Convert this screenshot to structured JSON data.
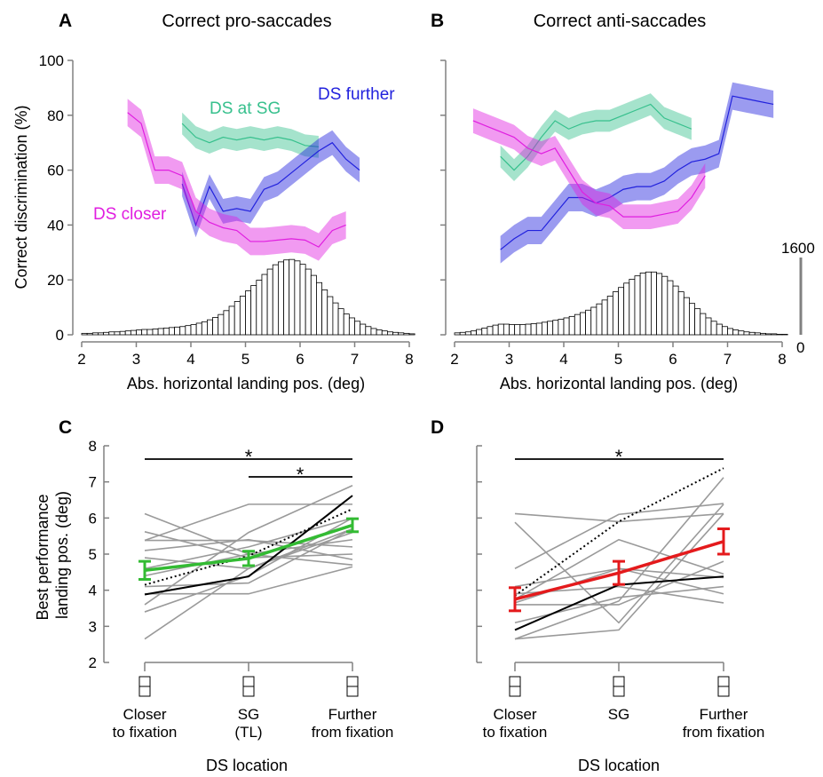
{
  "colors": {
    "pro": "#37c08d",
    "far": "#2222dd",
    "close": "#e01ee0",
    "green": "#33bb33",
    "red": "#e41a1c",
    "gray": "#9a9a9a",
    "axis": "#808080"
  },
  "panel_a": {
    "letter": "A",
    "title": "Correct pro-saccades"
  },
  "panel_b": {
    "letter": "B",
    "title": "Correct anti-saccades"
  },
  "panel_c": {
    "letter": "C"
  },
  "panel_d": {
    "letter": "D"
  },
  "labels": {
    "ylabel_top": "Correct discrimination (%)",
    "xlabel_top": "Abs. horizontal landing pos. (deg)",
    "hist_max": "1600",
    "hist_min": "0",
    "series_at": "DS at SG",
    "series_far": "DS further",
    "series_close": "DS closer",
    "ylabel_bottom_1": "Best performance",
    "ylabel_bottom_2": "landing pos. (deg)",
    "xlabel_bottom": "DS location",
    "star": "*"
  },
  "categories_c": [
    "Closer|to fixation",
    "SG|(TL)",
    "Further|from fixation"
  ],
  "categories_d": [
    "Closer|to fixation",
    "SG",
    "Further|from fixation"
  ],
  "chart_data": [
    {
      "type": "line",
      "panel": "A",
      "title": "Correct pro-saccades",
      "xlabel": "Abs. horizontal landing pos. (deg)",
      "ylabel": "Correct discrimination (%)",
      "xlim": [
        2,
        8
      ],
      "ylim": [
        0,
        100
      ],
      "xticks": [
        2,
        3,
        4,
        5,
        6,
        7,
        8
      ],
      "yticks": [
        0,
        20,
        40,
        60,
        80,
        100
      ],
      "series": [
        {
          "name": "DS at SG",
          "color": "#37c08d",
          "x": [
            3.84,
            4.09,
            4.34,
            4.59,
            4.84,
            5.09,
            5.34,
            5.59,
            5.84,
            6.09,
            6.34
          ],
          "y": [
            77,
            72,
            70,
            72,
            71,
            72,
            71,
            72,
            71,
            69,
            68.5
          ],
          "band": 4
        },
        {
          "name": "DS further",
          "color": "#2222dd",
          "x": [
            3.84,
            4.09,
            4.34,
            4.59,
            4.84,
            5.09,
            5.34,
            5.59,
            5.84,
            6.09,
            6.34,
            6.59,
            6.84,
            7.09
          ],
          "y": [
            55,
            40,
            54,
            45,
            46,
            45,
            53,
            55,
            59,
            63,
            67,
            70,
            64,
            60
          ],
          "band": 4.5
        },
        {
          "name": "DS closer",
          "color": "#e01ee0",
          "x": [
            2.84,
            3.09,
            3.34,
            3.59,
            3.84,
            4.09,
            4.34,
            4.59,
            4.84,
            5.09,
            5.34,
            5.59,
            5.84,
            6.09,
            6.34,
            6.59,
            6.84
          ],
          "y": [
            81,
            77,
            60,
            60,
            58,
            45,
            41,
            39,
            38,
            34,
            34,
            34.5,
            35,
            34.5,
            32,
            38,
            40
          ],
          "band": 5
        }
      ],
      "histogram": {
        "x_start": 2.0,
        "bin_width": 0.1,
        "max_count": 1600,
        "counts": [
          30,
          30,
          40,
          40,
          50,
          60,
          60,
          70,
          80,
          90,
          100,
          110,
          110,
          120,
          130,
          140,
          150,
          160,
          170,
          190,
          210,
          240,
          270,
          310,
          360,
          420,
          500,
          590,
          690,
          800,
          910,
          1020,
          1130,
          1250,
          1360,
          1450,
          1510,
          1550,
          1560,
          1530,
          1460,
          1360,
          1230,
          1080,
          930,
          790,
          660,
          540,
          430,
          350,
          280,
          220,
          170,
          130,
          100,
          80,
          60,
          50,
          40,
          30,
          20
        ]
      }
    },
    {
      "type": "line",
      "panel": "B",
      "title": "Correct anti-saccades",
      "xlabel": "Abs. horizontal landing pos. (deg)",
      "xlim": [
        2,
        8
      ],
      "ylim": [
        0,
        100
      ],
      "xticks": [
        2,
        3,
        4,
        5,
        6,
        7,
        8
      ],
      "series": [
        {
          "name": "DS at SG",
          "color": "#37c08d",
          "x": [
            2.84,
            3.09,
            3.34,
            3.59,
            3.84,
            4.09,
            4.34,
            4.59,
            4.84,
            5.09,
            5.34,
            5.59,
            5.84,
            6.09,
            6.34
          ],
          "y": [
            65,
            60,
            65,
            72,
            78,
            75,
            77,
            78,
            78,
            80,
            82,
            84,
            79,
            77,
            75
          ],
          "band": 4
        },
        {
          "name": "DS further",
          "color": "#2222dd",
          "x": [
            2.84,
            3.09,
            3.34,
            3.59,
            3.84,
            4.09,
            4.34,
            4.59,
            4.84,
            5.09,
            5.34,
            5.59,
            5.84,
            6.09,
            6.34,
            6.59,
            6.84,
            7.09,
            7.34,
            7.59,
            7.84
          ],
          "y": [
            31,
            35,
            38,
            38,
            44,
            50,
            50,
            48,
            50,
            53,
            54,
            54,
            56,
            60,
            63,
            64,
            66,
            87,
            86,
            85,
            84
          ],
          "band": 5
        },
        {
          "name": "DS closer",
          "color": "#e01ee0",
          "x": [
            2.34,
            2.59,
            2.84,
            3.09,
            3.34,
            3.59,
            3.84,
            4.09,
            4.34,
            4.59,
            4.84,
            5.09,
            5.34,
            5.59,
            5.84,
            6.09,
            6.34,
            6.59
          ],
          "y": [
            78,
            76,
            74,
            72,
            68,
            66,
            68,
            60,
            52,
            48,
            47,
            43,
            43,
            43,
            44,
            45,
            50,
            58
          ],
          "band": 4.5
        }
      ],
      "histogram": {
        "x_start": 2.0,
        "bin_width": 0.1,
        "max_count": 1600,
        "counts": [
          40,
          50,
          60,
          80,
          110,
          140,
          170,
          200,
          220,
          220,
          210,
          210,
          210,
          220,
          230,
          240,
          260,
          280,
          300,
          320,
          350,
          380,
          420,
          460,
          510,
          570,
          640,
          720,
          800,
          890,
          980,
          1070,
          1150,
          1220,
          1280,
          1300,
          1300,
          1270,
          1210,
          1120,
          1010,
          890,
          770,
          650,
          540,
          440,
          350,
          280,
          220,
          170,
          130,
          100,
          80,
          60,
          50,
          40,
          30,
          20,
          20,
          10,
          10
        ]
      }
    },
    {
      "type": "line",
      "panel": "C",
      "ylabel": "Best performance landing pos. (deg)",
      "xlabel": "DS location",
      "categories": [
        "Closer to fixation",
        "SG (TL)",
        "Further from fixation"
      ],
      "ylim": [
        2,
        8
      ],
      "yticks": [
        2,
        3,
        4,
        5,
        6,
        7,
        8
      ],
      "subjects": [
        [
          6.12,
          5.0,
          4.7
        ],
        [
          5.62,
          4.9,
          5.0
        ],
        [
          5.38,
          5.38,
          5.2
        ],
        [
          5.38,
          6.38,
          6.38
        ],
        [
          5.1,
          5.4,
          4.85
        ],
        [
          4.9,
          4.6,
          5.7
        ],
        [
          4.6,
          5.2,
          6.0
        ],
        [
          4.4,
          5.0,
          5.4
        ],
        [
          4.1,
          4.2,
          5.7
        ],
        [
          3.9,
          3.9,
          4.65
        ],
        [
          3.6,
          5.6,
          6.9
        ],
        [
          3.4,
          4.4,
          6.0
        ],
        [
          2.65,
          4.6,
          5.6
        ]
      ],
      "black_solid": [
        3.88,
        4.38,
        6.62
      ],
      "black_dotted": [
        4.15,
        4.95,
        6.25
      ],
      "mean": [
        4.55,
        4.88,
        5.8
      ],
      "err": [
        0.25,
        0.2,
        0.18
      ],
      "significance": [
        {
          "from": 0,
          "to": 2,
          "label": "*"
        },
        {
          "from": 1,
          "to": 2,
          "label": "*"
        }
      ]
    },
    {
      "type": "line",
      "panel": "D",
      "xlabel": "DS location",
      "categories": [
        "Closer to fixation",
        "SG",
        "Further from fixation"
      ],
      "ylim": [
        2,
        8
      ],
      "subjects": [
        [
          6.12,
          5.9,
          6.12
        ],
        [
          5.88,
          3.1,
          6.38
        ],
        [
          4.6,
          6.1,
          6.4
        ],
        [
          4.1,
          4.6,
          3.9
        ],
        [
          3.9,
          4.1,
          3.65
        ],
        [
          3.75,
          5.4,
          4.45
        ],
        [
          3.65,
          4.6,
          4.35
        ],
        [
          3.6,
          3.6,
          4.8
        ],
        [
          3.1,
          3.8,
          4.1
        ],
        [
          2.65,
          2.9,
          6.12
        ],
        [
          2.65,
          3.7,
          7.12
        ]
      ],
      "black_solid": [
        2.9,
        4.15,
        4.38
      ],
      "black_dotted": [
        3.85,
        5.9,
        7.38
      ],
      "mean": [
        3.75,
        4.48,
        5.35
      ],
      "err": [
        0.32,
        0.32,
        0.35
      ],
      "significance": [
        {
          "from": 0,
          "to": 2,
          "label": "*"
        }
      ]
    }
  ]
}
